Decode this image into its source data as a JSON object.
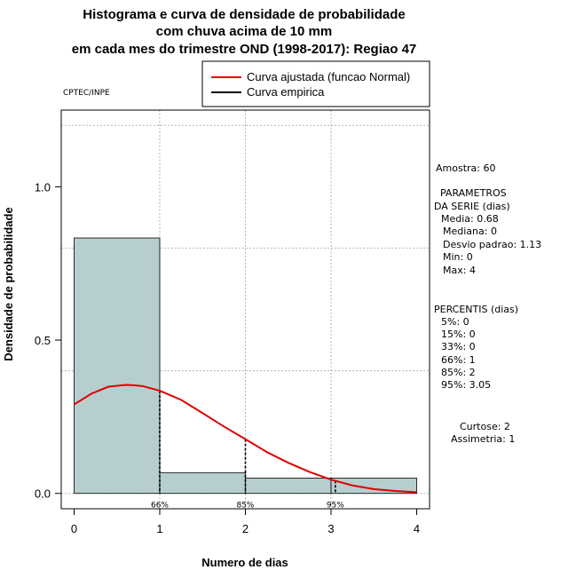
{
  "chart_data": {
    "type": "bar",
    "title": [
      "Histograma e curva de densidade de probabilidade",
      "com chuva acima de 10 mm",
      "em cada mes do trimestre OND (1998-2017): Regiao 47"
    ],
    "xlabel": "Numero de dias",
    "ylabel": "Densidade de probabilidade",
    "xlim": [
      -0.15,
      4.15
    ],
    "ylim": [
      -0.05,
      1.25
    ],
    "x_ticks": [
      "0",
      "1",
      "2",
      "3",
      "4"
    ],
    "x_tick_values": [
      0,
      1,
      2,
      3,
      4
    ],
    "y_ticks": [
      "0.0",
      "0.5",
      "1.0"
    ],
    "y_tick_values": [
      0,
      0.5,
      1.0
    ],
    "grid_x": [
      1,
      2,
      3
    ],
    "grid_y": [
      0,
      0.4,
      0.8,
      1.2
    ],
    "bars": [
      {
        "x0": 0,
        "x1": 1,
        "value": 0.833
      },
      {
        "x0": 1,
        "x1": 2,
        "value": 0.067
      },
      {
        "x0": 2,
        "x1": 3,
        "value": 0.05
      },
      {
        "x0": 3,
        "x1": 4,
        "value": 0.05
      }
    ],
    "bar_color": "#b7cece",
    "series": [
      {
        "name": "Curva ajustada (funcao Normal)",
        "color": "#e00000",
        "x": [
          0,
          0.2,
          0.4,
          0.6,
          0.68,
          0.8,
          1.0,
          1.25,
          1.5,
          1.75,
          2.0,
          2.25,
          2.5,
          2.75,
          3.0,
          3.25,
          3.5,
          3.75,
          4.0
        ],
        "y": [
          0.29,
          0.325,
          0.348,
          0.354,
          0.353,
          0.35,
          0.335,
          0.305,
          0.262,
          0.218,
          0.177,
          0.135,
          0.1,
          0.07,
          0.045,
          0.026,
          0.014,
          0.008,
          0.004
        ]
      },
      {
        "name": "Curva empirica",
        "color": "#000000",
        "x": [],
        "y": []
      }
    ],
    "percentile_markers": [
      {
        "label": "66%",
        "x": 1,
        "y": 0.335
      },
      {
        "label": "85%",
        "x": 2,
        "y": 0.177
      },
      {
        "label": "95%",
        "x": 3.05,
        "y": 0.042
      }
    ],
    "legend_position": "top-right"
  },
  "source": "CPTEC/INPE",
  "stats_panel": {
    "amostra": "Amostra: 60",
    "param_title_1": "PARAMETROS",
    "param_title_2": "DA SERIE (dias)",
    "media": "Media: 0.68",
    "mediana": "Mediana: 0",
    "desvio": "Desvio padrao: 1.13",
    "min": "Min: 0",
    "max": "Max: 4",
    "perc_title": "PERCENTIS (dias)",
    "p5": "5%: 0",
    "p15": "15%: 0",
    "p33": "33%: 0",
    "p66": "66%: 1",
    "p85": "85%: 2",
    "p95": "95%: 3.05",
    "curtose": "Curtose: 2",
    "assimetria": "Assimetria: 1"
  }
}
